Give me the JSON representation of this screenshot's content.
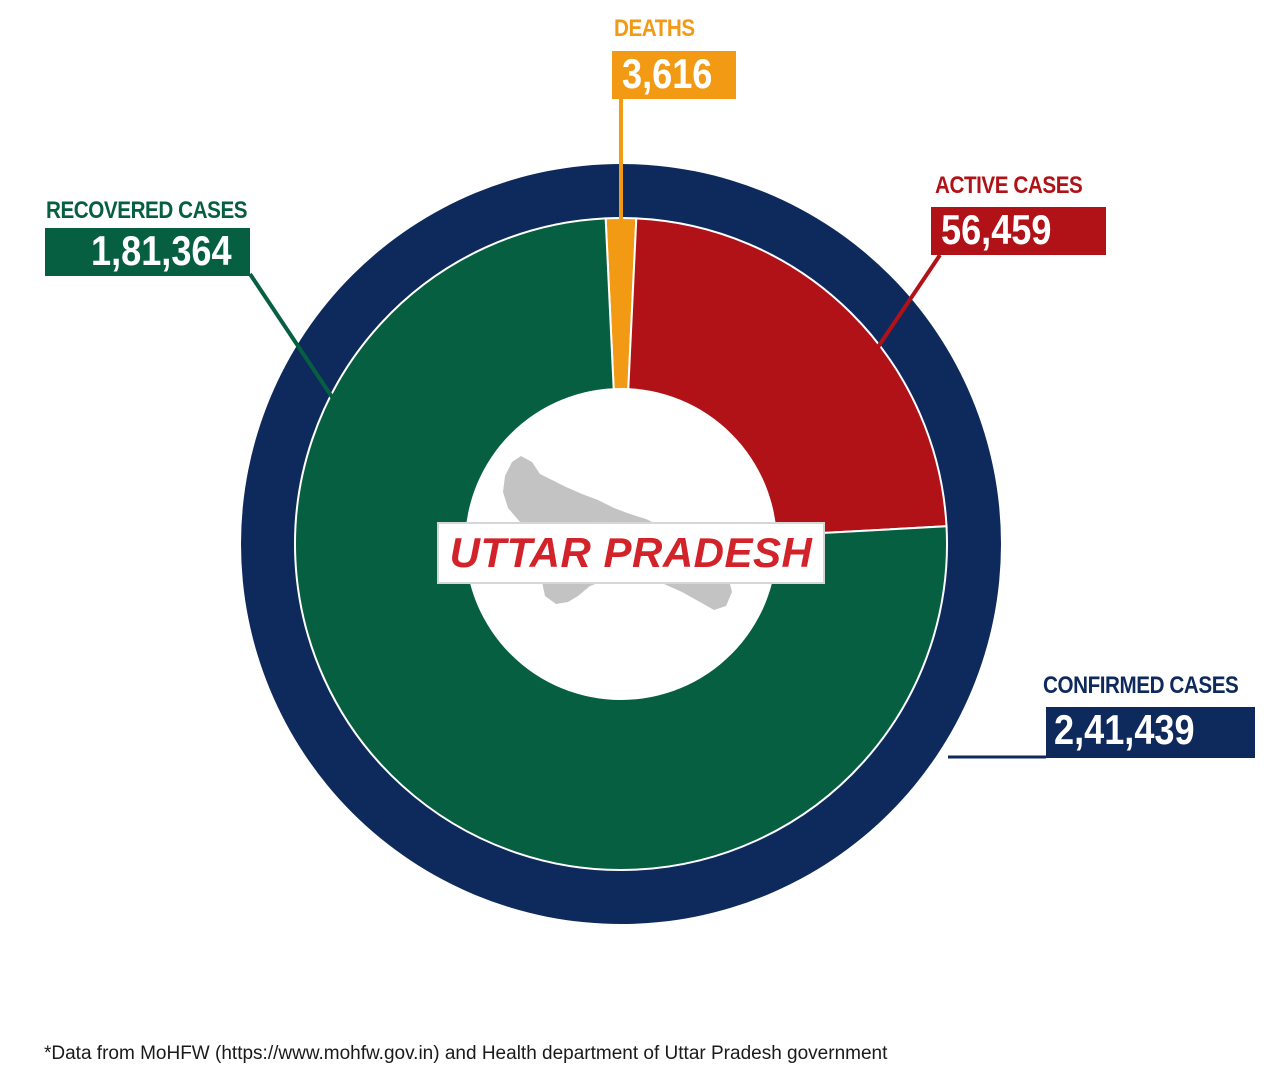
{
  "chart_data": {
    "type": "donut",
    "title": "UTTAR PRADESH",
    "outer_ring": {
      "label": "CONFIRMED CASES",
      "display": "2,41,439",
      "value": 241439
    },
    "categories": [
      "DEATHS",
      "ACTIVE CASES",
      "RECOVERED CASES"
    ],
    "values": [
      3616,
      56459,
      181364
    ],
    "display_values": [
      "3,616",
      "56,459",
      "1,81,364"
    ]
  },
  "colors": {
    "deaths": "#f39a14",
    "active": "#b01218",
    "recovered": "#075f41",
    "confirmed": "#0e2a5c",
    "title": "#d3232a"
  },
  "center_icon": "uttar-pradesh-map-silhouette",
  "footnote": "*Data from MoHFW (https://www.mohfw.gov.in) and Health department of Uttar Pradesh government"
}
